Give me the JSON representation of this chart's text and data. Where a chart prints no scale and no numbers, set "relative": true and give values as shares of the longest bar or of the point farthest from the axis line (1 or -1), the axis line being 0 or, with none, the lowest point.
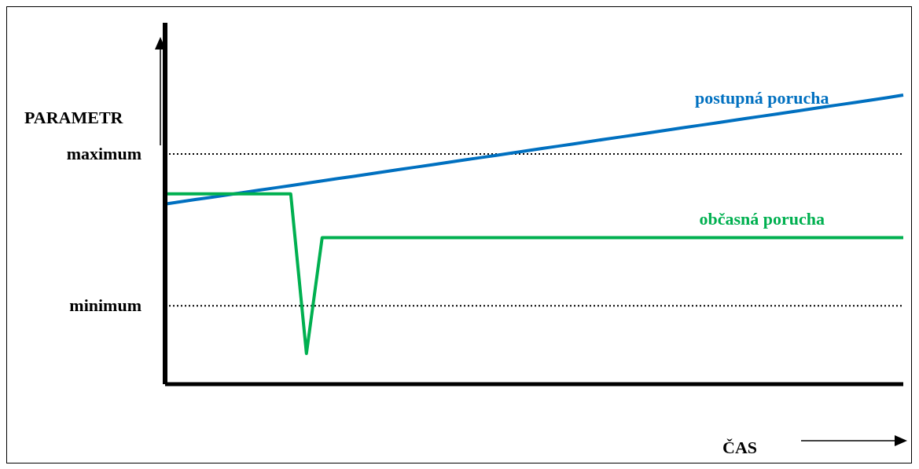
{
  "chart_data": {
    "type": "line",
    "relative": true,
    "xlabel": "ČAS",
    "ylabel": "PARAMETR",
    "categories": [
      null,
      null,
      null,
      null,
      null,
      null,
      null,
      null,
      null,
      null,
      null,
      null,
      null,
      null,
      null,
      null,
      null,
      null,
      null,
      null,
      null,
      null,
      null,
      null,
      null,
      null,
      null,
      null,
      null,
      null,
      null,
      null,
      null,
      null,
      null,
      null,
      null,
      null,
      null,
      null,
      null,
      null,
      null,
      null,
      null,
      null,
      null,
      null
    ],
    "series": [
      {
        "name": "postupná porucha",
        "color": "#0070c0",
        "values": [
          0.623,
          0.631,
          0.639,
          0.647,
          0.655,
          0.663,
          0.671,
          0.679,
          0.687,
          0.695,
          0.703,
          0.711,
          0.719,
          0.727,
          0.735,
          0.743,
          0.751,
          0.759,
          0.767,
          0.775,
          0.783,
          0.791,
          0.799,
          0.807,
          0.815,
          0.823,
          0.831,
          0.839,
          0.847,
          0.855,
          0.863,
          0.871,
          0.879,
          0.887,
          0.895,
          0.903,
          0.911,
          0.919,
          0.927,
          0.935,
          0.943,
          0.951,
          0.959,
          0.967,
          0.975,
          0.983,
          0.991,
          1.0
        ]
      },
      {
        "name": "občasná porucha",
        "color": "#00b050",
        "values": [
          0.658,
          0.658,
          0.658,
          0.658,
          0.658,
          0.658,
          0.658,
          0.658,
          0.658,
          0.106,
          0.507,
          0.507,
          0.507,
          0.507,
          0.507,
          0.507,
          0.507,
          0.507,
          0.507,
          0.507,
          0.507,
          0.507,
          0.507,
          0.507,
          0.507,
          0.507,
          0.507,
          0.507,
          0.507,
          0.507,
          0.507,
          0.507,
          0.507,
          0.507,
          0.507,
          0.507,
          0.507,
          0.507,
          0.507,
          0.507,
          0.507,
          0.507,
          0.507,
          0.507,
          0.507,
          0.507,
          0.507,
          0.507
        ]
      }
    ],
    "ref_lines": [
      {
        "axis": "y",
        "value": 0.796,
        "label": "maximum",
        "line_style": "dotted"
      },
      {
        "axis": "y",
        "value": 0.271,
        "label": "minimum",
        "line_style": "dotted"
      }
    ]
  }
}
